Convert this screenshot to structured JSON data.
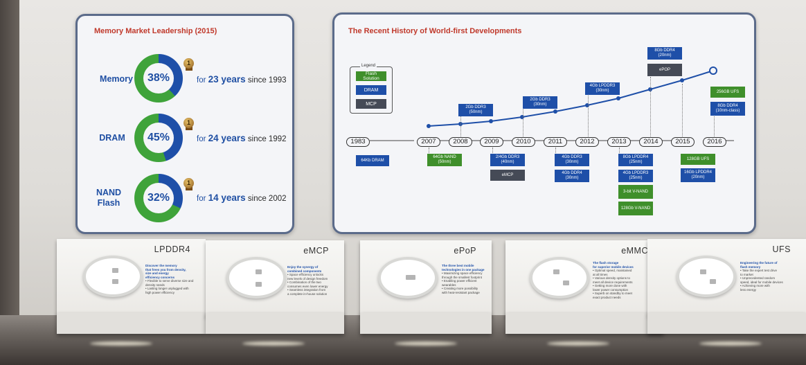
{
  "left_panel": {
    "title": "Memory Market Leadership (2015)",
    "rows": [
      {
        "name": "Memory",
        "percent": "38%",
        "share": 0.38,
        "medal": "1",
        "for": "for",
        "years": "23 years",
        "since": "since 1993"
      },
      {
        "name": "DRAM",
        "percent": "45%",
        "share": 0.45,
        "medal": "1",
        "for": "for",
        "years": "24 years",
        "since": "since 1992"
      },
      {
        "name": "NAND Flash",
        "percent": "32%",
        "share": 0.32,
        "medal": "1",
        "for": "for",
        "years": "14 years",
        "since": "since 2002"
      }
    ],
    "colors": {
      "green": "#3fa33a",
      "blue": "#1e4fa8"
    }
  },
  "right_panel": {
    "title": "The Recent History of World-first Developments",
    "legend": {
      "title": "Legend",
      "items": [
        "Flash Solution",
        "DRAM",
        "MCP"
      ]
    },
    "years": [
      "1983",
      "2007",
      "2008",
      "2009",
      "2010",
      "2011",
      "2012",
      "2013",
      "2014",
      "2015",
      "2016"
    ],
    "tags": {
      "t1983": "64Kb DRAM",
      "t2007": "64Gb NAND (50nm)",
      "t2008": "2Gb DDR3 (50nm)",
      "t2009a": "2/4Gb DDR3 (40nm)",
      "t2009b": "eMCP",
      "t2010": "2Gb DDR3 (30nm)",
      "t2011a": "4Gb DDR3 (30nm)",
      "t2011b": "4Gb DDR4 (30nm)",
      "t2012": "4Gb LPDDR3 (30nm)",
      "t2013a": "8Gb LPDDR4 (25nm)",
      "t2013b": "4Gb LPDDR3 (25nm)",
      "t2013c": "3-bit V-NAND",
      "t2013d": "128Gb V-NAND",
      "t2014a": "8Gb DDR4 (20nm)",
      "t2014b": "ePOP",
      "t2015a": "128GB UFS",
      "t2015b": "16Gb LPDDR4 (20nm)",
      "t2016a": "256GB UFS",
      "t2016b": "8Gb DDR4 (10nm-class)"
    }
  },
  "stands": [
    {
      "title": "LPDDR4",
      "text": [
        "Discover the memory",
        "that frees you from density,",
        "size and energy",
        "efficiency concerns",
        "• Flexible to serve diverse size and",
        "  density needs",
        "• Lasting longer unplugged with",
        "  high power efficiency"
      ]
    },
    {
      "title": "eMCP",
      "text": [
        "Enjoy the synergy of",
        "combined components",
        "• Space efficiency unlocks",
        "  new levels of design freedom",
        "• Combination of the two",
        "  consumes even lower energy",
        "• Seamless integration from",
        "  a complete in-house solution"
      ]
    },
    {
      "title": "ePoP",
      "text": [
        "The three best mobile",
        "technologies in one package",
        "• Maximizing space efficiency",
        "  through the smallest footprint",
        "• Enabling power efficient",
        "  wearables",
        "• Creating more possibility",
        "  with heat-resistant package"
      ]
    },
    {
      "title": "eMMC",
      "text": [
        "The flash storage",
        "for superior mobile devices",
        "• Optimal speed, maintained",
        "  at all times",
        "• Various density options to",
        "  meet all device requirements",
        "• Getting more done with",
        "  lower power consumption",
        "• Superb on standby to meet",
        "  exact product needs"
      ]
    },
    {
      "title": "UFS",
      "text": [
        "Engineering the future of",
        "flash memory",
        "• Take the expert test drive",
        "  to market",
        "• Unprecedented random",
        "  speed, ideal for mobile devices",
        "• Achieving more with",
        "  less energy"
      ]
    }
  ]
}
